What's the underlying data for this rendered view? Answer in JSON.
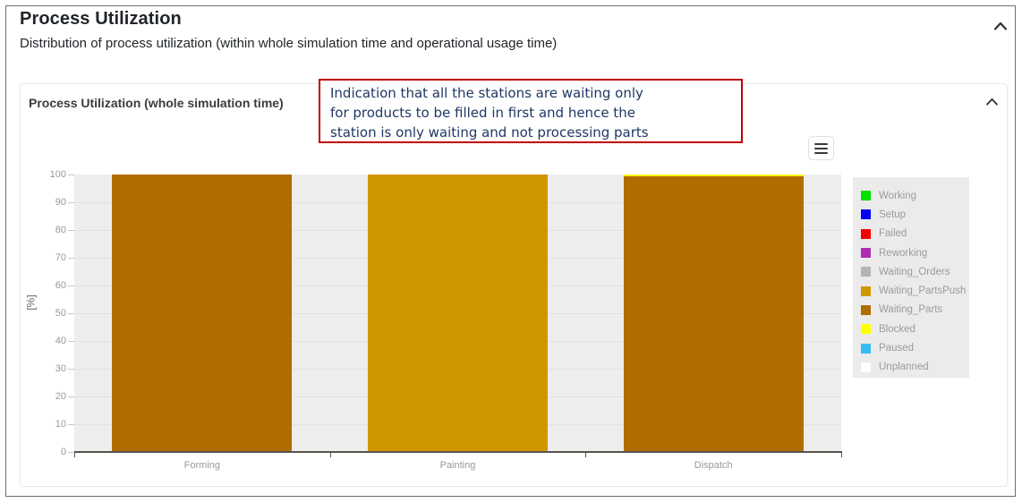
{
  "header": {
    "title": "Process Utilization",
    "subtitle": "Distribution of process utilization (within whole simulation time and operational usage time)",
    "collapse_icon": "chevron-up"
  },
  "card": {
    "title": "Process Utilization (whole simulation time)",
    "collapse_icon": "chevron-up",
    "menu_icon": "hamburger-menu"
  },
  "annotation": {
    "lines": [
      "Indication that all the stations are waiting only",
      "for products to be filled in first and hence the",
      "station is only waiting and not processing parts"
    ],
    "border_color": "#c00000",
    "text_color": "#1f3864"
  },
  "chart_data": {
    "type": "bar",
    "stacked": true,
    "title": "Process Utilization (whole simulation time)",
    "xlabel": "",
    "ylabel": "[%]",
    "ylim": [
      0,
      100
    ],
    "yticks": [
      0,
      10,
      20,
      30,
      40,
      50,
      60,
      70,
      80,
      90,
      100
    ],
    "grid": true,
    "legend_position": "right",
    "plot_background": "#eeedeb",
    "categories": [
      "Forming",
      "Painting",
      "Dispatch"
    ],
    "series": [
      {
        "name": "Working",
        "color": "#00e100",
        "values": [
          0,
          0,
          0
        ]
      },
      {
        "name": "Setup",
        "color": "#0000f5",
        "values": [
          0,
          0,
          0
        ]
      },
      {
        "name": "Failed",
        "color": "#f50000",
        "values": [
          0,
          0,
          0
        ]
      },
      {
        "name": "Reworking",
        "color": "#b02cb0",
        "values": [
          0,
          0,
          0
        ]
      },
      {
        "name": "Waiting_Orders",
        "color": "#b4b4b4",
        "values": [
          0,
          0,
          0
        ]
      },
      {
        "name": "Waiting_PartsPush",
        "color": "#d09600",
        "values": [
          0,
          100,
          0
        ]
      },
      {
        "name": "Waiting_Parts",
        "color": "#b16c00",
        "values": [
          100,
          0,
          99.3
        ]
      },
      {
        "name": "Blocked",
        "color": "#ffff00",
        "values": [
          0,
          0,
          0.7
        ]
      },
      {
        "name": "Paused",
        "color": "#38bdf0",
        "values": [
          0,
          0,
          0
        ]
      },
      {
        "name": "Unplanned",
        "color": "#ffffff",
        "values": [
          0,
          0,
          0
        ]
      }
    ]
  }
}
